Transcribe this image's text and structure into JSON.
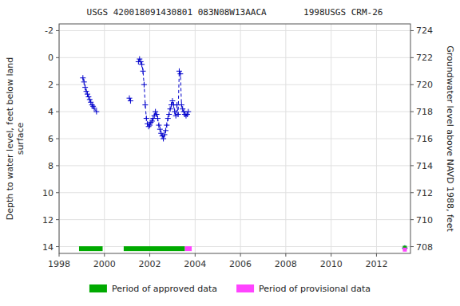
{
  "chart_data": {
    "type": "line",
    "title": "USGS 420018091430801 083N08W13AACA       1998USGS CRM-26",
    "ylabel": "Depth to water level, feet below land\nsurface",
    "y2label": "Groundwater level above NAVD 1988, feet",
    "xlim": [
      1998,
      2013.5
    ],
    "xticks": [
      1998,
      2000,
      2002,
      2004,
      2006,
      2008,
      2010,
      2012
    ],
    "ylim": [
      14.5,
      -2.5
    ],
    "yticks": [
      -2,
      0,
      2,
      4,
      6,
      8,
      10,
      12,
      14
    ],
    "y2lim": [
      707.5,
      724.5
    ],
    "y2ticks": [
      724,
      722,
      720,
      718,
      716,
      714,
      712,
      710,
      708
    ],
    "grid": true,
    "legend": "bottom",
    "series": [
      {
        "color": "#0000cc",
        "line_style": "dashed",
        "marker": "plus",
        "x": [
          1999.05,
          1999.1,
          1999.15,
          1999.2,
          1999.25,
          1999.3,
          1999.35,
          1999.4,
          1999.45,
          1999.5,
          1999.55,
          1999.65,
          null,
          2001.1,
          2001.15,
          null,
          2001.5,
          2001.55,
          2001.6,
          2001.65,
          2001.7,
          2001.75,
          2001.8,
          2001.85,
          2001.9,
          2001.95,
          2002.0,
          2002.05,
          2002.1,
          2002.15,
          2002.2,
          2002.25,
          2002.3,
          2002.35,
          2002.4,
          2002.45,
          2002.5,
          2002.55,
          2002.6,
          2002.65,
          2002.7,
          2002.75,
          2002.8,
          2002.85,
          2002.9,
          2002.95,
          2003.0,
          2003.05,
          2003.1,
          2003.15,
          2003.2,
          2003.25,
          2003.3,
          2003.35,
          2003.4,
          2003.45,
          2003.5,
          2003.55,
          2003.6,
          2003.65,
          2003.7
        ],
        "values": [
          1.5,
          1.8,
          2.2,
          2.5,
          2.7,
          2.9,
          3.1,
          3.3,
          3.5,
          3.6,
          3.75,
          4.0,
          null,
          3.0,
          3.2,
          null,
          0.3,
          0.1,
          0.3,
          0.5,
          1.0,
          2.0,
          3.5,
          4.5,
          4.9,
          5.1,
          5.0,
          4.8,
          4.7,
          4.5,
          4.3,
          4.0,
          4.2,
          4.5,
          5.0,
          5.3,
          5.6,
          5.8,
          6.0,
          5.7,
          5.4,
          5.0,
          4.5,
          4.2,
          3.8,
          3.5,
          3.2,
          3.5,
          4.0,
          4.3,
          3.5,
          4.2,
          1.0,
          1.2,
          3.5,
          3.8,
          4.0,
          4.2,
          4.3,
          4.2,
          4.0
        ]
      },
      {
        "type": "scatter",
        "color": "#0000cc",
        "marker": "plus",
        "x": [
          2013.25
        ],
        "values": [
          14.1
        ]
      },
      {
        "type": "scatter",
        "color": "#00aa00",
        "marker": "square",
        "x": [
          2013.25
        ],
        "values": [
          14.08
        ]
      },
      {
        "type": "scatter",
        "color": "#ff44ff",
        "marker": "square",
        "x": [
          2013.25
        ],
        "values": [
          14.22
        ]
      }
    ],
    "periods": [
      {
        "name": "Period of approved data",
        "color": "#00aa00",
        "y_range": [
          13.97,
          14.33
        ],
        "ranges": [
          [
            1998.88,
            1999.92
          ],
          [
            2000.85,
            2003.55
          ]
        ]
      },
      {
        "name": "Period of provisional data",
        "color": "#ff44ff",
        "y_range": [
          13.97,
          14.33
        ],
        "ranges": [
          [
            2003.55,
            2003.85
          ]
        ]
      }
    ]
  }
}
